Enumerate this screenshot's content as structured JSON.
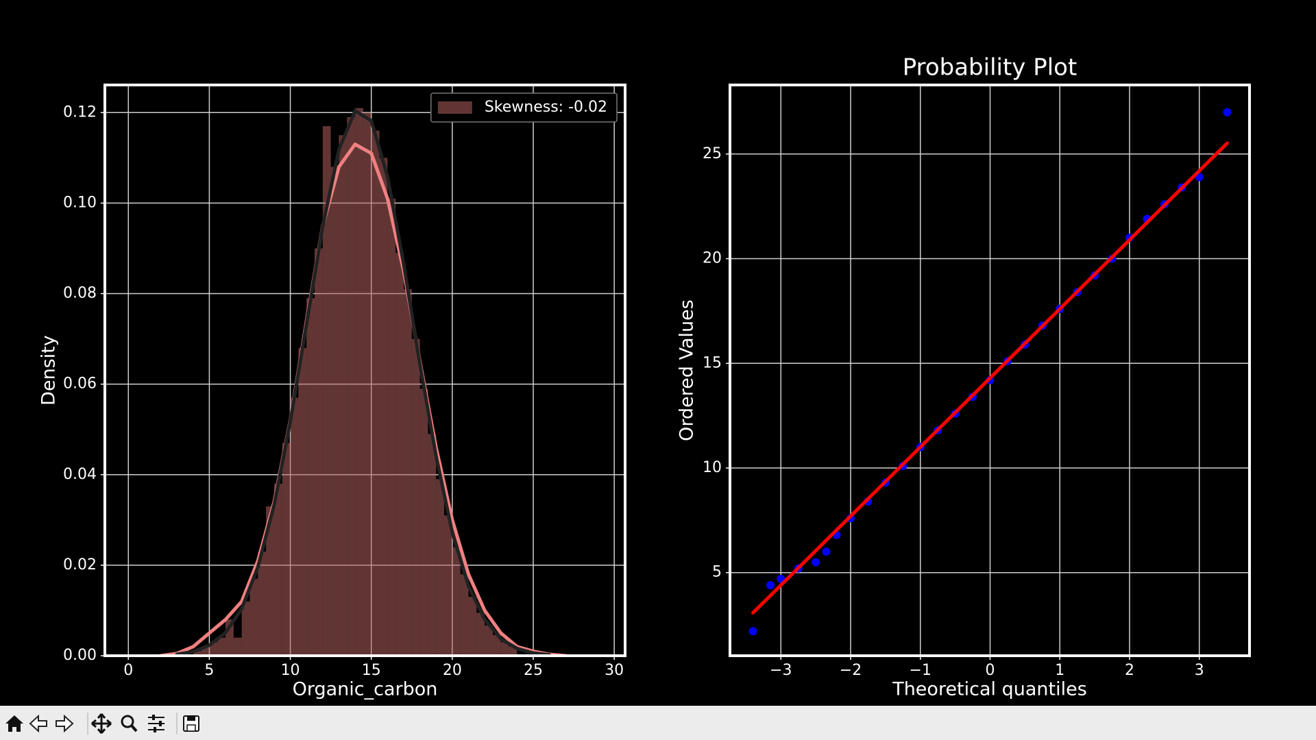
{
  "chart_data": [
    {
      "type": "histogram",
      "xlabel": "Organic_carbon",
      "ylabel": "Density",
      "bins": [
        4,
        4.5,
        5,
        5.5,
        6,
        6.5,
        7,
        7.5,
        8,
        8.5,
        9,
        9.5,
        10,
        10.5,
        11,
        11.5,
        12,
        12.5,
        13,
        13.5,
        14,
        14.5,
        15,
        15.5,
        16,
        16.5,
        17,
        17.5,
        18,
        18.5,
        19,
        19.5,
        20,
        20.5,
        21,
        21.5,
        22,
        22.5,
        23,
        23.5,
        24
      ],
      "values": [
        0.001,
        0.002,
        0.003,
        0.004,
        0.008,
        0.004,
        0.012,
        0.017,
        0.023,
        0.033,
        0.038,
        0.047,
        0.057,
        0.068,
        0.079,
        0.09,
        0.117,
        0.108,
        0.115,
        0.119,
        0.121,
        0.12,
        0.116,
        0.11,
        0.101,
        0.089,
        0.081,
        0.07,
        0.059,
        0.049,
        0.039,
        0.031,
        0.024,
        0.018,
        0.013,
        0.0095,
        0.0067,
        0.0046,
        0.003,
        0.002
      ],
      "color": "#b36060",
      "alpha": 0.55,
      "lines": [
        {
          "color": "#f08080",
          "x": [
            2,
            3,
            4,
            5,
            6,
            7,
            8,
            9,
            10,
            11,
            12,
            13,
            14,
            15,
            16,
            17,
            18,
            19,
            20,
            21,
            22,
            23,
            24,
            25,
            26,
            27
          ],
          "values": [
            0.0,
            0.0005,
            0.002,
            0.005,
            0.008,
            0.012,
            0.021,
            0.034,
            0.052,
            0.074,
            0.095,
            0.108,
            0.113,
            0.111,
            0.101,
            0.085,
            0.065,
            0.046,
            0.03,
            0.018,
            0.01,
            0.005,
            0.002,
            0.001,
            0.0003,
            0.0
          ]
        },
        {
          "color": "#222222",
          "x": [
            3,
            4,
            5,
            6,
            7,
            8,
            9,
            10,
            11,
            12,
            13,
            14,
            15,
            16,
            17,
            18,
            19,
            20,
            21,
            22,
            23,
            24,
            25,
            26
          ],
          "values": [
            0.0003,
            0.0009,
            0.0023,
            0.0051,
            0.0104,
            0.0196,
            0.0333,
            0.0517,
            0.0733,
            0.0948,
            0.1118,
            0.1204,
            0.1182,
            0.1059,
            0.0865,
            0.0644,
            0.0441,
            0.0272,
            0.0154,
            0.008,
            0.0037,
            0.0016,
            0.0006,
            0.0002
          ]
        }
      ],
      "xlim": [
        -1.45,
        30.67
      ],
      "ylim": [
        0,
        0.1261
      ],
      "xticks": [
        0,
        5,
        10,
        15,
        20,
        25,
        30
      ],
      "yticks": [
        {
          "value": 0,
          "label": "0.00"
        },
        {
          "value": 0.02,
          "label": "0.02"
        },
        {
          "value": 0.04,
          "label": "0.04"
        },
        {
          "value": 0.06,
          "label": "0.06"
        },
        {
          "value": 0.08,
          "label": "0.08"
        },
        {
          "value": 0.1,
          "label": "0.10"
        },
        {
          "value": 0.12,
          "label": "0.12"
        }
      ],
      "grid": true,
      "legend": {
        "label": "Skewness: -0.02",
        "loc": "upper right"
      }
    },
    {
      "type": "scatter",
      "title": "Probability Plot",
      "xlabel": "Theoretical quantiles",
      "ylabel": "Ordered Values",
      "series": [
        {
          "color": "#0000ff",
          "x": [
            -3.4,
            -3.15,
            -3.0,
            -2.75,
            -2.5,
            -2.35,
            -2.2,
            -2.0,
            -1.75,
            -1.5,
            -1.25,
            -1.0,
            -0.75,
            -0.5,
            -0.25,
            0,
            0.25,
            0.5,
            0.75,
            1.0,
            1.25,
            1.5,
            1.75,
            2.0,
            2.25,
            2.5,
            2.75,
            3.0,
            3.4
          ],
          "values": [
            2.2,
            4.4,
            4.7,
            5.2,
            5.5,
            6.0,
            6.8,
            7.6,
            8.4,
            9.3,
            10.1,
            11.0,
            11.8,
            12.6,
            13.4,
            14.2,
            15.1,
            15.9,
            16.8,
            17.6,
            18.4,
            19.2,
            20.0,
            21.0,
            21.9,
            22.6,
            23.4,
            23.9,
            27.0
          ]
        }
      ],
      "lines": [
        {
          "color": "#ff0000",
          "x": [
            -3.4,
            3.4
          ],
          "values": [
            3.08,
            25.52
          ]
        }
      ],
      "xlim": [
        -3.73,
        3.72
      ],
      "ylim": [
        1.03,
        28.3
      ],
      "xticks": [
        {
          "value": -3,
          "label": "−3"
        },
        {
          "value": -2,
          "label": "−2"
        },
        {
          "value": -1,
          "label": "−1"
        },
        0,
        1,
        2,
        3
      ],
      "yticks": [
        5,
        10,
        15,
        20,
        25
      ],
      "grid": true
    }
  ]
}
